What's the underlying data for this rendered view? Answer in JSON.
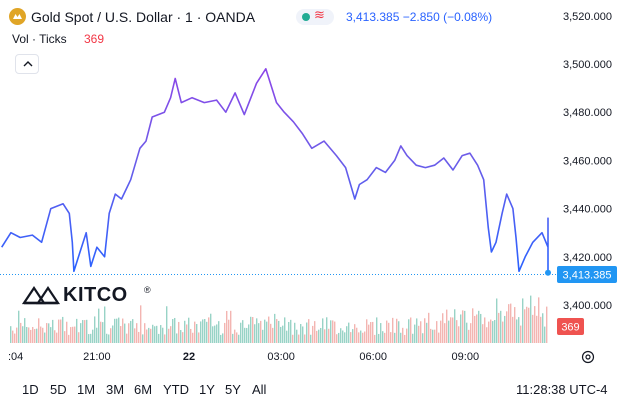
{
  "header": {
    "title": "Gold Spot / U.S. Dollar · 1 · OANDA",
    "price": "3,413.385",
    "change": "−2.850 (−0.08%)",
    "volume_label": "Vol · Ticks",
    "volume_value": "369"
  },
  "icons": {
    "symbol": "gold-coin-icon",
    "status_dot": "market-status-dot-icon",
    "wave": "wave-icon",
    "collapse": "chevron-up-icon",
    "settings": "gear-icon"
  },
  "colors": {
    "price_line": "#2962ff",
    "price_line_peak": "#8e44e8",
    "vol_up": "#7ec8b8",
    "vol_down": "#f0a39e",
    "last_price_tag": "#2196f3",
    "volume_tag": "#ef5350"
  },
  "logo": {
    "text": "KITCO"
  },
  "chart_data": {
    "type": "line",
    "title": "Gold Spot / U.S. Dollar · 1 · OANDA",
    "xlabel": "",
    "ylabel": "",
    "x_tick_labels": [
      ":04",
      "21:00",
      "22",
      "03:00",
      "06:00",
      "09:00"
    ],
    "x_tick_hours": [
      -5.93,
      -3,
      0,
      3,
      6,
      9
    ],
    "y_ticks": [
      3400,
      3420,
      3440,
      3460,
      3480,
      3500,
      3520
    ],
    "y_tick_labels": [
      "3,400.000",
      "3,420.000",
      "3,440.000",
      "3,460.000",
      "3,480.000",
      "3,500.000",
      "3,520.000"
    ],
    "ylim": [
      3388,
      3523
    ],
    "last_price": 3413.385,
    "last_price_label": "3,413.385",
    "volume_label": "369",
    "grid": false,
    "series": [
      {
        "values": [
          [
            -6.1,
            3424
          ],
          [
            -5.8,
            3430
          ],
          [
            -5.5,
            3428
          ],
          [
            -5.1,
            3429
          ],
          [
            -4.8,
            3426
          ],
          [
            -4.5,
            3440
          ],
          [
            -4.1,
            3442
          ],
          [
            -3.9,
            3438
          ],
          [
            -3.8,
            3426
          ],
          [
            -3.75,
            3414
          ],
          [
            -3.55,
            3422
          ],
          [
            -3.35,
            3430
          ],
          [
            -3.2,
            3416
          ],
          [
            -3.0,
            3424
          ],
          [
            -2.75,
            3420
          ],
          [
            -2.6,
            3438
          ],
          [
            -2.4,
            3446
          ],
          [
            -2.2,
            3444
          ],
          [
            -1.9,
            3452
          ],
          [
            -1.6,
            3465
          ],
          [
            -1.4,
            3468
          ],
          [
            -1.2,
            3478
          ],
          [
            -0.8,
            3480
          ],
          [
            -0.6,
            3486
          ],
          [
            -0.45,
            3494
          ],
          [
            -0.25,
            3484
          ],
          [
            0.1,
            3486
          ],
          [
            0.5,
            3484
          ],
          [
            0.9,
            3485
          ],
          [
            1.2,
            3480
          ],
          [
            1.5,
            3488
          ],
          [
            1.8,
            3479
          ],
          [
            2.2,
            3492
          ],
          [
            2.5,
            3498
          ],
          [
            2.85,
            3484
          ],
          [
            3.1,
            3480
          ],
          [
            3.4,
            3476
          ],
          [
            3.7,
            3471
          ],
          [
            4.0,
            3465
          ],
          [
            4.4,
            3468
          ],
          [
            4.8,
            3462
          ],
          [
            5.1,
            3457
          ],
          [
            5.4,
            3444
          ],
          [
            5.55,
            3450
          ],
          [
            5.8,
            3452
          ],
          [
            6.1,
            3457
          ],
          [
            6.4,
            3455
          ],
          [
            6.7,
            3460
          ],
          [
            6.9,
            3466
          ],
          [
            7.1,
            3462
          ],
          [
            7.4,
            3458
          ],
          [
            7.7,
            3457
          ],
          [
            8.0,
            3458
          ],
          [
            8.3,
            3461
          ],
          [
            8.6,
            3456
          ],
          [
            8.9,
            3462
          ],
          [
            9.15,
            3463
          ],
          [
            9.4,
            3458
          ],
          [
            9.6,
            3452
          ],
          [
            9.75,
            3432
          ],
          [
            9.85,
            3422
          ],
          [
            10.0,
            3426
          ],
          [
            10.2,
            3438
          ],
          [
            10.35,
            3446
          ],
          [
            10.55,
            3440
          ],
          [
            10.65,
            3428
          ],
          [
            10.75,
            3414
          ],
          [
            10.95,
            3420
          ],
          [
            11.2,
            3426
          ],
          [
            11.5,
            3430
          ],
          [
            11.7,
            3424
          ],
          [
            11.9,
            3430
          ],
          [
            12.05,
            3436
          ],
          [
            12.2,
            3436
          ],
          [
            12.45,
            3430
          ],
          [
            12.6,
            3424
          ],
          [
            12.8,
            3422
          ],
          [
            13.0,
            3420
          ],
          [
            13.15,
            3413.385
          ]
        ]
      }
    ]
  }
}
